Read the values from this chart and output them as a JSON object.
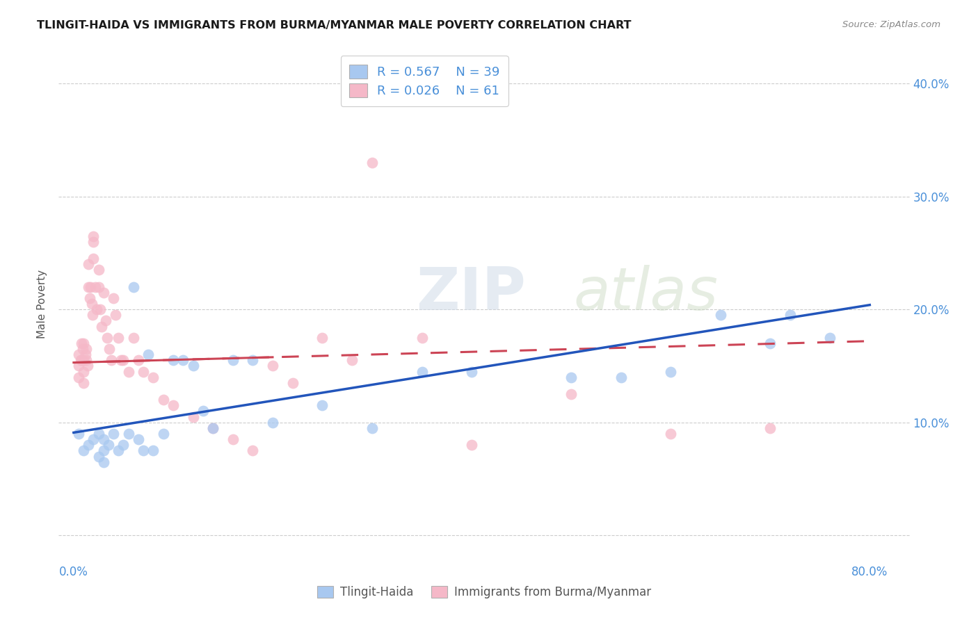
{
  "title": "TLINGIT-HAIDA VS IMMIGRANTS FROM BURMA/MYANMAR MALE POVERTY CORRELATION CHART",
  "source": "Source: ZipAtlas.com",
  "ylabel": "Male Poverty",
  "x_ticks": [
    0.0,
    0.1,
    0.2,
    0.3,
    0.4,
    0.5,
    0.6,
    0.7,
    0.8
  ],
  "x_tick_labels": [
    "0.0%",
    "",
    "",
    "",
    "",
    "",
    "",
    "",
    "80.0%"
  ],
  "y_ticks": [
    0.0,
    0.1,
    0.2,
    0.3,
    0.4
  ],
  "y_tick_labels_right": [
    "",
    "10.0%",
    "20.0%",
    "30.0%",
    "40.0%"
  ],
  "xlim": [
    -0.015,
    0.84
  ],
  "ylim": [
    -0.02,
    0.43
  ],
  "blue_color": "#a8c8f0",
  "pink_color": "#f5b8c8",
  "blue_line_color": "#2255bb",
  "pink_line_color": "#cc4455",
  "legend_R1": "R = 0.567",
  "legend_N1": "N = 39",
  "legend_R2": "R = 0.026",
  "legend_N2": "N = 61",
  "series1_label": "Tlingit-Haida",
  "series2_label": "Immigrants from Burma/Myanmar",
  "watermark": "ZIPatlas",
  "blue_x": [
    0.005,
    0.01,
    0.015,
    0.02,
    0.025,
    0.025,
    0.03,
    0.03,
    0.03,
    0.035,
    0.04,
    0.045,
    0.05,
    0.055,
    0.06,
    0.065,
    0.07,
    0.075,
    0.08,
    0.09,
    0.1,
    0.11,
    0.12,
    0.13,
    0.14,
    0.16,
    0.18,
    0.2,
    0.25,
    0.3,
    0.35,
    0.4,
    0.5,
    0.55,
    0.6,
    0.65,
    0.7,
    0.72,
    0.76
  ],
  "blue_y": [
    0.09,
    0.075,
    0.08,
    0.085,
    0.09,
    0.07,
    0.085,
    0.075,
    0.065,
    0.08,
    0.09,
    0.075,
    0.08,
    0.09,
    0.22,
    0.085,
    0.075,
    0.16,
    0.075,
    0.09,
    0.155,
    0.155,
    0.15,
    0.11,
    0.095,
    0.155,
    0.155,
    0.1,
    0.115,
    0.095,
    0.145,
    0.145,
    0.14,
    0.14,
    0.145,
    0.195,
    0.17,
    0.195,
    0.175
  ],
  "pink_x": [
    0.005,
    0.005,
    0.005,
    0.007,
    0.008,
    0.008,
    0.009,
    0.01,
    0.01,
    0.01,
    0.01,
    0.012,
    0.013,
    0.013,
    0.014,
    0.015,
    0.015,
    0.016,
    0.017,
    0.018,
    0.019,
    0.02,
    0.02,
    0.02,
    0.022,
    0.023,
    0.025,
    0.025,
    0.027,
    0.028,
    0.03,
    0.032,
    0.034,
    0.036,
    0.038,
    0.04,
    0.042,
    0.045,
    0.048,
    0.05,
    0.055,
    0.06,
    0.065,
    0.07,
    0.08,
    0.09,
    0.1,
    0.12,
    0.14,
    0.16,
    0.18,
    0.2,
    0.22,
    0.25,
    0.28,
    0.3,
    0.35,
    0.4,
    0.5,
    0.6,
    0.7
  ],
  "pink_y": [
    0.16,
    0.15,
    0.14,
    0.155,
    0.17,
    0.155,
    0.165,
    0.17,
    0.155,
    0.145,
    0.135,
    0.16,
    0.165,
    0.155,
    0.15,
    0.24,
    0.22,
    0.21,
    0.22,
    0.205,
    0.195,
    0.265,
    0.26,
    0.245,
    0.22,
    0.2,
    0.235,
    0.22,
    0.2,
    0.185,
    0.215,
    0.19,
    0.175,
    0.165,
    0.155,
    0.21,
    0.195,
    0.175,
    0.155,
    0.155,
    0.145,
    0.175,
    0.155,
    0.145,
    0.14,
    0.12,
    0.115,
    0.105,
    0.095,
    0.085,
    0.075,
    0.15,
    0.135,
    0.175,
    0.155,
    0.33,
    0.175,
    0.08,
    0.125,
    0.09,
    0.095
  ],
  "background_color": "#ffffff",
  "grid_color": "#cccccc",
  "blue_line_x_start": 0.0,
  "blue_line_x_end": 0.8,
  "blue_line_y_start": 0.091,
  "blue_line_y_end": 0.204,
  "pink_line_x_start": 0.0,
  "pink_line_x_end": 0.8,
  "pink_line_y_start": 0.153,
  "pink_line_y_end": 0.172
}
